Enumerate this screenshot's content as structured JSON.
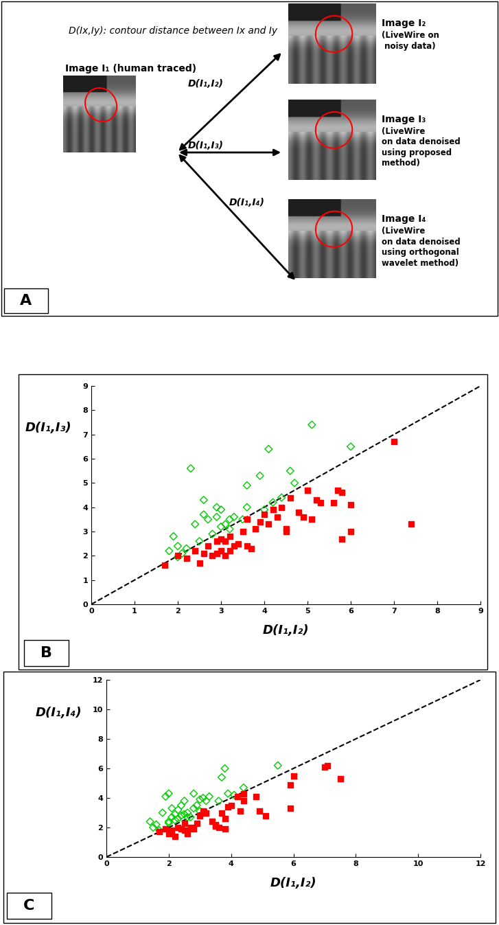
{
  "diagram": {
    "panel_label": "A",
    "definition": "D(Ix,Iy): contour distance between Ix and Iy",
    "source": {
      "title": "Image I₁ (human traced)"
    },
    "targets": [
      {
        "title": "Image I₂",
        "description": "(LiveWire on\n noisy data)",
        "edge_label": "D(I₁,I₂)"
      },
      {
        "title": "Image I₃",
        "description": "(LiveWire\non data denoised\nusing proposed\nmethod)",
        "edge_label": "D(I₁,I₃)"
      },
      {
        "title": "Image I₄",
        "description": "(LiveWire\non data denoised\nusing orthogonal\nwavelet method)",
        "edge_label": "D(I₁,I₄)"
      }
    ]
  },
  "chart_data": [
    {
      "type": "scatter",
      "panel_label": "B",
      "x_label": "D(I₁,I₂)",
      "y_label": "D(I₁,I₃)",
      "xlim": [
        0,
        9
      ],
      "ylim": [
        0,
        9
      ],
      "xticks": [
        0,
        1,
        2,
        3,
        4,
        5,
        6,
        7,
        8,
        9
      ],
      "yticks": [
        0,
        1,
        2,
        3,
        4,
        5,
        6,
        7,
        8,
        9
      ],
      "series": [
        {
          "type": "line",
          "color": "#000000",
          "line_style": "dashed",
          "x": [
            0,
            9
          ],
          "y": [
            0,
            9
          ]
        },
        {
          "type": "scatter",
          "color": "#00cc00",
          "marker": "diamond",
          "x": [
            1.8,
            1.9,
            2.0,
            2.1,
            2.2,
            2.3,
            2.4,
            2.5,
            2.6,
            2.6,
            2.7,
            2.8,
            2.9,
            3.0,
            3.0,
            3.1,
            3.2,
            3.3,
            3.5,
            3.6,
            3.6,
            3.9,
            4.0,
            4.1,
            4.2,
            4.4,
            4.6,
            4.7,
            5.1,
            6.0,
            2.9,
            3.2,
            2.0
          ],
          "y": [
            2.2,
            2.8,
            2.4,
            2.1,
            2.3,
            5.6,
            3.3,
            2.6,
            3.7,
            4.3,
            3.5,
            2.9,
            4.0,
            3.9,
            3.2,
            3.3,
            3.5,
            3.6,
            3.5,
            4.0,
            4.9,
            5.3,
            3.9,
            6.4,
            4.2,
            4.4,
            5.5,
            5.0,
            7.4,
            6.5,
            3.6,
            3.1,
            1.95
          ]
        },
        {
          "type": "scatter",
          "color": "#ff0000",
          "marker": "square",
          "x": [
            1.7,
            2.0,
            2.2,
            2.4,
            2.5,
            2.6,
            2.7,
            2.8,
            2.9,
            2.9,
            3.0,
            3.0,
            3.1,
            3.2,
            3.2,
            3.3,
            3.4,
            3.5,
            3.6,
            3.7,
            3.8,
            3.9,
            4.0,
            4.1,
            4.2,
            4.3,
            4.4,
            4.5,
            4.5,
            4.6,
            4.8,
            4.9,
            5.0,
            5.1,
            5.2,
            5.3,
            5.6,
            5.7,
            5.8,
            5.8,
            6.0,
            6.0,
            7.0,
            7.4,
            3.6,
            3.1
          ],
          "y": [
            1.6,
            2.0,
            1.9,
            2.2,
            1.7,
            2.1,
            2.4,
            2.0,
            2.6,
            2.1,
            2.7,
            2.2,
            2.0,
            2.2,
            2.8,
            2.4,
            2.5,
            3.0,
            2.4,
            2.3,
            3.1,
            3.4,
            3.7,
            3.3,
            3.9,
            3.6,
            4.0,
            3.1,
            3.0,
            4.4,
            3.8,
            3.6,
            4.7,
            3.5,
            4.3,
            4.2,
            4.2,
            4.7,
            4.6,
            2.7,
            3.0,
            4.1,
            6.7,
            3.3,
            3.5,
            2.6
          ]
        }
      ]
    },
    {
      "type": "scatter",
      "panel_label": "C",
      "x_label": "D(I₁,I₂)",
      "y_label": "D(I₁,I₄)",
      "xlim": [
        0,
        12
      ],
      "ylim": [
        0,
        12
      ],
      "xticks": [
        0,
        2,
        4,
        6,
        8,
        10,
        12
      ],
      "yticks": [
        0,
        2,
        4,
        6,
        8,
        10,
        12
      ],
      "series": [
        {
          "type": "line",
          "color": "#000000",
          "line_style": "dashed",
          "x": [
            0,
            12
          ],
          "y": [
            0,
            12
          ]
        },
        {
          "type": "scatter",
          "color": "#00cc00",
          "marker": "diamond",
          "x": [
            1.4,
            1.5,
            1.6,
            1.7,
            1.8,
            1.9,
            2.0,
            2.0,
            2.1,
            2.1,
            2.2,
            2.2,
            2.3,
            2.3,
            2.4,
            2.4,
            2.5,
            2.5,
            2.6,
            2.7,
            2.8,
            2.8,
            2.9,
            3.0,
            3.0,
            3.1,
            3.2,
            3.3,
            3.6,
            3.7,
            3.8,
            3.9,
            4.1,
            4.4,
            5.5,
            2.0,
            2.6
          ],
          "y": [
            2.4,
            2.0,
            2.2,
            1.8,
            3.0,
            4.1,
            4.3,
            2.4,
            2.7,
            3.3,
            2.5,
            2.9,
            2.6,
            3.2,
            3.5,
            2.8,
            3.8,
            2.9,
            3.0,
            2.7,
            4.3,
            3.3,
            3.5,
            3.9,
            3.1,
            4.0,
            3.8,
            4.1,
            3.8,
            5.4,
            6.0,
            4.3,
            4.2,
            4.7,
            6.2,
            2.3,
            2.7
          ]
        },
        {
          "type": "scatter",
          "color": "#ff0000",
          "marker": "square",
          "x": [
            1.7,
            1.9,
            2.0,
            2.1,
            2.2,
            2.3,
            2.4,
            2.5,
            2.5,
            2.6,
            2.7,
            2.8,
            2.9,
            3.0,
            3.1,
            3.2,
            3.4,
            3.5,
            3.6,
            3.7,
            3.8,
            3.8,
            3.9,
            4.0,
            4.2,
            4.3,
            4.4,
            4.4,
            4.8,
            4.9,
            5.1,
            5.9,
            5.9,
            6.0,
            7.0,
            7.1,
            7.5,
            3.5
          ],
          "y": [
            1.7,
            1.9,
            1.6,
            1.8,
            1.4,
            2.0,
            1.9,
            1.8,
            2.3,
            1.6,
            2.0,
            1.9,
            2.3,
            2.8,
            3.1,
            3.0,
            2.4,
            2.2,
            2.0,
            3.0,
            2.6,
            1.9,
            3.4,
            3.5,
            4.1,
            3.1,
            3.8,
            4.3,
            4.1,
            3.1,
            2.8,
            4.9,
            3.3,
            5.5,
            6.1,
            6.2,
            5.3,
            2.1
          ]
        }
      ]
    }
  ]
}
